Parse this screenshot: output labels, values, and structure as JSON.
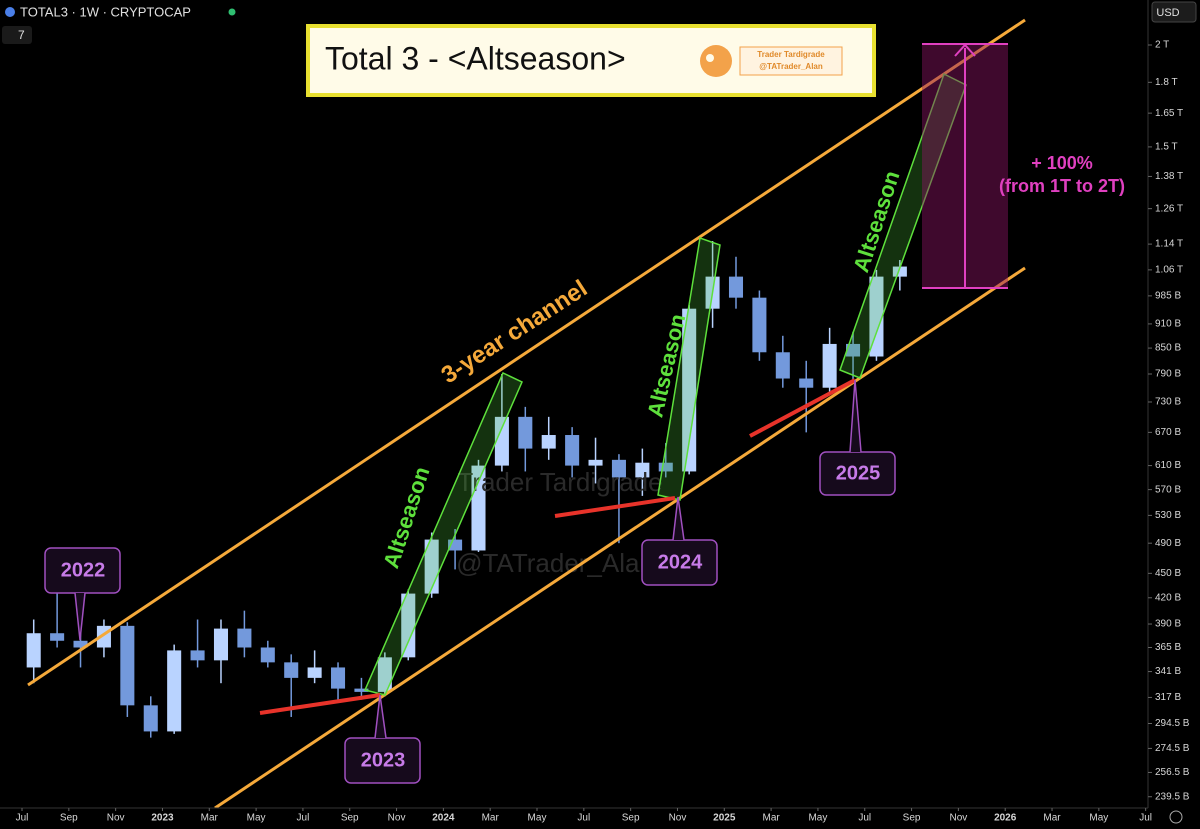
{
  "header": {
    "symbol": "TOTAL3 · 1W · CRYPTOCAP",
    "interval": "7",
    "currency": "USD"
  },
  "chart_data": {
    "type": "candlestick",
    "title": "Total 3 - <Altseason>",
    "logo": {
      "name": "Trader Tardigrade",
      "handle": "@TATrader_Alan"
    },
    "watermark": {
      "name": "Trader Tardigrade",
      "handle": "@TATrader_Alan"
    },
    "annotations": [
      "3-year channel",
      "Altseason",
      "Altseason",
      "Altseason",
      "2022",
      "2023",
      "2024",
      "2025",
      "+ 100%",
      "(from 1T to 2T)"
    ],
    "x": [
      0.5,
      1.5,
      2.5,
      3.5,
      4.5,
      5.5,
      6.5,
      7.5,
      8.5,
      9.5,
      10.5,
      11.5,
      12.5,
      13.5,
      14.5,
      15.5,
      16.5,
      17.5,
      18.5,
      19.5,
      20.5,
      21.5,
      22.5,
      23.5,
      24.5,
      25.5,
      26.5,
      27.5,
      28.5,
      29.5,
      30.5,
      31.5,
      32.5,
      33.5,
      34.5,
      35.5,
      36.5,
      37.5
    ],
    "open": [
      345,
      380,
      372,
      365,
      388,
      310,
      288,
      362,
      352,
      385,
      365,
      350,
      335,
      345,
      325,
      322,
      355,
      425,
      495,
      480,
      610,
      700,
      640,
      665,
      610,
      620,
      590,
      615,
      600,
      950,
      1040,
      980,
      840,
      780,
      760,
      860,
      830,
      1040
    ],
    "high": [
      395,
      430,
      395,
      395,
      392,
      318,
      368,
      395,
      395,
      405,
      372,
      358,
      362,
      350,
      335,
      360,
      430,
      505,
      510,
      620,
      790,
      720,
      700,
      680,
      660,
      630,
      640,
      650,
      960,
      1150,
      1100,
      1000,
      880,
      820,
      900,
      890,
      1060,
      1090
    ],
    "low": [
      330,
      365,
      345,
      355,
      300,
      283,
      286,
      345,
      330,
      355,
      345,
      300,
      330,
      315,
      315,
      318,
      352,
      420,
      455,
      478,
      600,
      600,
      620,
      590,
      580,
      490,
      560,
      590,
      595,
      900,
      950,
      820,
      760,
      670,
      750,
      770,
      820,
      1000
    ],
    "close": [
      380,
      372,
      365,
      388,
      310,
      288,
      362,
      352,
      385,
      365,
      350,
      335,
      345,
      325,
      322,
      355,
      425,
      495,
      480,
      610,
      700,
      640,
      665,
      610,
      620,
      590,
      615,
      600,
      950,
      1040,
      980,
      840,
      780,
      760,
      860,
      830,
      1040,
      1070
    ],
    "up_color": "#b9d3ff",
    "down_color": "#7399dc",
    "log_scale": true,
    "xlim": [
      -0.94,
      48.1
    ],
    "xticks": [
      {
        "value": 0,
        "label": "Jul"
      },
      {
        "value": 2,
        "label": "Sep"
      },
      {
        "value": 4,
        "label": "Nov"
      },
      {
        "value": 6,
        "label": "2023"
      },
      {
        "value": 8,
        "label": "Mar"
      },
      {
        "value": 10,
        "label": "May"
      },
      {
        "value": 12,
        "label": "Jul"
      },
      {
        "value": 14,
        "label": "Sep"
      },
      {
        "value": 16,
        "label": "Nov"
      },
      {
        "value": 18,
        "label": "2024"
      },
      {
        "value": 20,
        "label": "Mar"
      },
      {
        "value": 22,
        "label": "May"
      },
      {
        "value": 24,
        "label": "Jul"
      },
      {
        "value": 26,
        "label": "Sep"
      },
      {
        "value": 28,
        "label": "Nov"
      },
      {
        "value": 30,
        "label": "2025"
      },
      {
        "value": 32,
        "label": "Mar"
      },
      {
        "value": 34,
        "label": "May"
      },
      {
        "value": 36,
        "label": "Jul"
      },
      {
        "value": 38,
        "label": "Sep"
      },
      {
        "value": 40,
        "label": "Nov"
      },
      {
        "value": 42,
        "label": "2026"
      },
      {
        "value": 44,
        "label": "Mar"
      },
      {
        "value": 46,
        "label": "May"
      },
      {
        "value": 48,
        "label": "Jul"
      }
    ],
    "ylim": [
      232,
      2271
    ],
    "yticks": [
      {
        "value": 2000,
        "label": "2 T"
      },
      {
        "value": 1800,
        "label": "1.8 T"
      },
      {
        "value": 1650,
        "label": "1.65 T"
      },
      {
        "value": 1500,
        "label": "1.5 T"
      },
      {
        "value": 1380,
        "label": "1.38 T"
      },
      {
        "value": 1260,
        "label": "1.26 T"
      },
      {
        "value": 1140,
        "label": "1.14 T"
      },
      {
        "value": 1060,
        "label": "1.06 T"
      },
      {
        "value": 985,
        "label": "985 B"
      },
      {
        "value": 910,
        "label": "910 B"
      },
      {
        "value": 850,
        "label": "850 B"
      },
      {
        "value": 790,
        "label": "790 B"
      },
      {
        "value": 730,
        "label": "730 B"
      },
      {
        "value": 670,
        "label": "670 B"
      },
      {
        "value": 610,
        "label": "610 B"
      },
      {
        "value": 570,
        "label": "570 B"
      },
      {
        "value": 530,
        "label": "530 B"
      },
      {
        "value": 490,
        "label": "490 B"
      },
      {
        "value": 450,
        "label": "450 B"
      },
      {
        "value": 420,
        "label": "420 B"
      },
      {
        "value": 390,
        "label": "390 B"
      },
      {
        "value": 365,
        "label": "365 B"
      },
      {
        "value": 341,
        "label": "341 B"
      },
      {
        "value": 317,
        "label": "317 B"
      },
      {
        "value": 294.5,
        "label": "294.5 B"
      },
      {
        "value": 274.5,
        "label": "274.5 B"
      },
      {
        "value": 256.5,
        "label": "256.5 B"
      },
      {
        "value": 239.5,
        "label": "239.5 B"
      }
    ]
  }
}
